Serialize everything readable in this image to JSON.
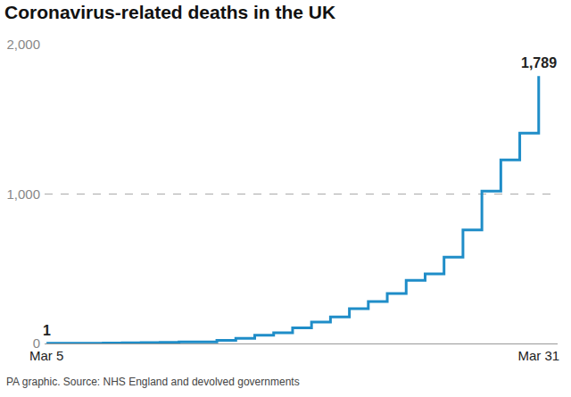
{
  "chart_data": {
    "type": "line",
    "line_style": "step",
    "title": "Coronavirus-related deaths in the UK",
    "footnote": "PA graphic. Source: NHS England and devolved governments",
    "categories": [
      "Mar 5",
      null,
      null,
      null,
      null,
      null,
      null,
      null,
      null,
      null,
      null,
      null,
      null,
      null,
      null,
      null,
      null,
      null,
      null,
      null,
      null,
      null,
      null,
      null,
      null,
      null,
      "Mar 31"
    ],
    "values": [
      1,
      2,
      2,
      3,
      4,
      6,
      8,
      10,
      11,
      21,
      35,
      55,
      71,
      104,
      144,
      177,
      233,
      281,
      335,
      422,
      465,
      578,
      759,
      1019,
      1228,
      1408,
      1789
    ],
    "color": "#1f8dc8",
    "ylim": [
      0,
      2000
    ],
    "yticks": [
      0,
      {
        "value": 1000,
        "label": "1,000"
      },
      {
        "value": 2000,
        "label": "2,000"
      }
    ],
    "grid": true,
    "legend": "none",
    "annotations": [
      {
        "category_index": 0,
        "label": "1"
      },
      {
        "category_index": 26,
        "label": "1,789"
      }
    ]
  }
}
